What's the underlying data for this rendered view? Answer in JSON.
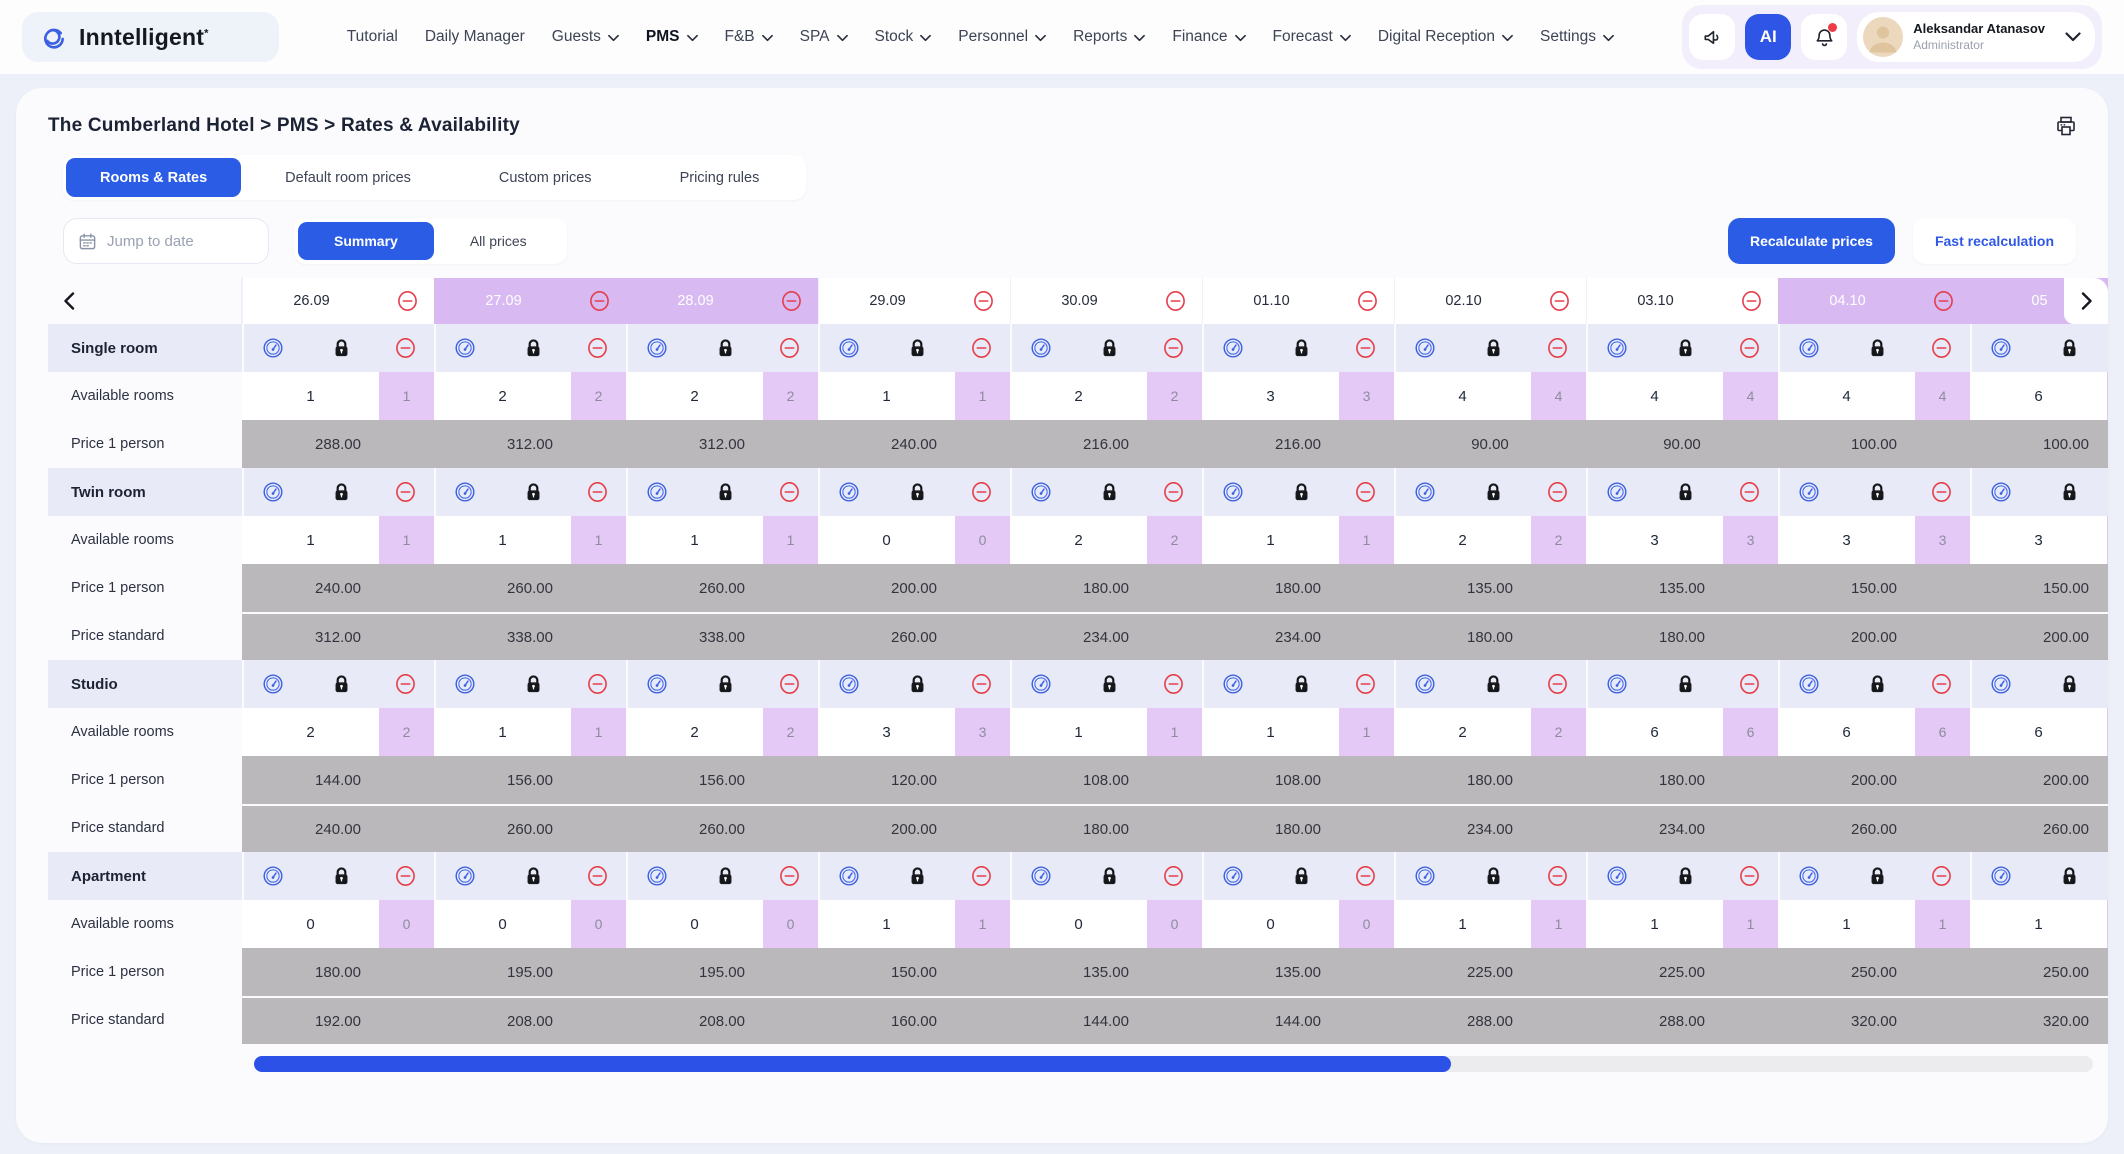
{
  "header": {
    "logo_text": "Inntelligent",
    "logo_mark": "*",
    "nav": [
      {
        "label": "Tutorial",
        "dropdown": false,
        "active": false
      },
      {
        "label": "Daily Manager",
        "dropdown": false,
        "active": false
      },
      {
        "label": "Guests",
        "dropdown": true,
        "active": false
      },
      {
        "label": "PMS",
        "dropdown": true,
        "active": true
      },
      {
        "label": "F&B",
        "dropdown": true,
        "active": false
      },
      {
        "label": "SPA",
        "dropdown": true,
        "active": false
      },
      {
        "label": "Stock",
        "dropdown": true,
        "active": false
      },
      {
        "label": "Personnel",
        "dropdown": true,
        "active": false
      },
      {
        "label": "Reports",
        "dropdown": true,
        "active": false
      },
      {
        "label": "Finance",
        "dropdown": true,
        "active": false
      },
      {
        "label": "Forecast",
        "dropdown": true,
        "active": false
      },
      {
        "label": "Digital Reception",
        "dropdown": true,
        "active": false
      },
      {
        "label": "Settings",
        "dropdown": true,
        "active": false
      }
    ],
    "ai_label": "AI",
    "user": {
      "name": "Aleksandar Atanasov",
      "role": "Administrator"
    }
  },
  "breadcrumb": "The Cumberland Hotel > PMS > Rates & Availability",
  "tabs": [
    {
      "label": "Rooms & Rates",
      "active": true
    },
    {
      "label": "Default room prices",
      "active": false
    },
    {
      "label": "Custom prices",
      "active": false
    },
    {
      "label": "Pricing rules",
      "active": false
    }
  ],
  "controls": {
    "jump_placeholder": "Jump to date",
    "view_toggle": [
      {
        "label": "Summary",
        "active": true
      },
      {
        "label": "All prices",
        "active": false
      }
    ],
    "recalculate_label": "Recalculate prices",
    "fast_label": "Fast recalculation"
  },
  "table": {
    "dates": [
      {
        "label": "26.09",
        "weekend": false
      },
      {
        "label": "27.09",
        "weekend": true
      },
      {
        "label": "28.09",
        "weekend": true
      },
      {
        "label": "29.09",
        "weekend": false
      },
      {
        "label": "30.09",
        "weekend": false
      },
      {
        "label": "01.10",
        "weekend": false
      },
      {
        "label": "02.10",
        "weekend": false
      },
      {
        "label": "03.10",
        "weekend": false
      },
      {
        "label": "04.10",
        "weekend": true
      },
      {
        "label": "05",
        "weekend": true
      }
    ],
    "row_labels": {
      "available": "Available rooms",
      "price_1_person": "Price 1 person",
      "price_standard": "Price standard"
    },
    "rooms": [
      {
        "name": "Single room",
        "available": [
          "1",
          "2",
          "2",
          "1",
          "2",
          "3",
          "4",
          "4",
          "4",
          "6"
        ],
        "price_1_person": [
          "288.00",
          "312.00",
          "312.00",
          "240.00",
          "216.00",
          "216.00",
          "90.00",
          "90.00",
          "100.00",
          "100.00"
        ],
        "price_standard": null
      },
      {
        "name": "Twin room",
        "available": [
          "1",
          "1",
          "1",
          "0",
          "2",
          "1",
          "2",
          "3",
          "3",
          "3"
        ],
        "price_1_person": [
          "240.00",
          "260.00",
          "260.00",
          "200.00",
          "180.00",
          "180.00",
          "135.00",
          "135.00",
          "150.00",
          "150.00"
        ],
        "price_standard": [
          "312.00",
          "338.00",
          "338.00",
          "260.00",
          "234.00",
          "234.00",
          "180.00",
          "180.00",
          "200.00",
          "200.00"
        ]
      },
      {
        "name": "Studio",
        "available": [
          "2",
          "1",
          "2",
          "3",
          "1",
          "1",
          "2",
          "6",
          "6",
          "6"
        ],
        "price_1_person": [
          "144.00",
          "156.00",
          "156.00",
          "120.00",
          "108.00",
          "108.00",
          "180.00",
          "180.00",
          "200.00",
          "200.00"
        ],
        "price_standard": [
          "240.00",
          "260.00",
          "260.00",
          "200.00",
          "180.00",
          "180.00",
          "234.00",
          "234.00",
          "260.00",
          "260.00"
        ]
      },
      {
        "name": "Apartment",
        "available": [
          "0",
          "0",
          "0",
          "1",
          "0",
          "0",
          "1",
          "1",
          "1",
          "1"
        ],
        "price_1_person": [
          "180.00",
          "195.00",
          "195.00",
          "150.00",
          "135.00",
          "135.00",
          "225.00",
          "225.00",
          "250.00",
          "250.00"
        ],
        "price_standard": [
          "192.00",
          "208.00",
          "208.00",
          "160.00",
          "144.00",
          "144.00",
          "288.00",
          "288.00",
          "320.00",
          "320.00"
        ]
      }
    ]
  },
  "colors": {
    "accent_blue": "#2a5ce5",
    "weekend_purple": "#d8b9f2",
    "chip_purple": "#e4c9f6",
    "price_gray": "#bab8bb",
    "room_header_lavender": "#e8eaf7",
    "block_red": "#e4404e",
    "gauge_blue": "#3d63e3",
    "scrollbar_blue": "#2b51e6",
    "notification_red": "#ee3b47"
  }
}
